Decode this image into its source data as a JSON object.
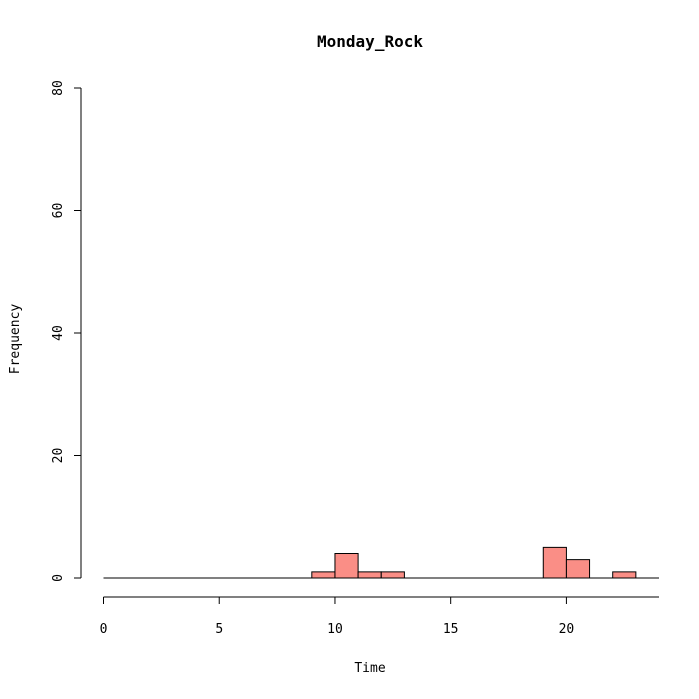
{
  "chart_data": {
    "type": "bar",
    "title": "Monday_Rock",
    "xlabel": "Time",
    "ylabel": "Frequency",
    "xlim": [
      0,
      24
    ],
    "ylim": [
      0,
      80
    ],
    "x_ticks": [
      0,
      5,
      10,
      15,
      20
    ],
    "y_ticks": [
      0,
      20,
      40,
      60,
      80
    ],
    "bins": [
      {
        "start": 0,
        "end": 1,
        "count": 0
      },
      {
        "start": 1,
        "end": 2,
        "count": 0
      },
      {
        "start": 2,
        "end": 3,
        "count": 0
      },
      {
        "start": 3,
        "end": 4,
        "count": 0
      },
      {
        "start": 4,
        "end": 5,
        "count": 0
      },
      {
        "start": 5,
        "end": 6,
        "count": 0
      },
      {
        "start": 6,
        "end": 7,
        "count": 0
      },
      {
        "start": 7,
        "end": 8,
        "count": 0
      },
      {
        "start": 8,
        "end": 9,
        "count": 0
      },
      {
        "start": 9,
        "end": 10,
        "count": 1
      },
      {
        "start": 10,
        "end": 11,
        "count": 4
      },
      {
        "start": 11,
        "end": 12,
        "count": 1
      },
      {
        "start": 12,
        "end": 13,
        "count": 1
      },
      {
        "start": 13,
        "end": 14,
        "count": 0
      },
      {
        "start": 14,
        "end": 15,
        "count": 0
      },
      {
        "start": 15,
        "end": 16,
        "count": 0
      },
      {
        "start": 16,
        "end": 17,
        "count": 0
      },
      {
        "start": 17,
        "end": 18,
        "count": 0
      },
      {
        "start": 18,
        "end": 19,
        "count": 0
      },
      {
        "start": 19,
        "end": 20,
        "count": 5
      },
      {
        "start": 20,
        "end": 21,
        "count": 3
      },
      {
        "start": 21,
        "end": 22,
        "count": 0
      },
      {
        "start": 22,
        "end": 23,
        "count": 1
      },
      {
        "start": 23,
        "end": 24,
        "count": 0
      }
    ],
    "bar_color": "#fa8e86",
    "grid": false,
    "legend": "none"
  }
}
